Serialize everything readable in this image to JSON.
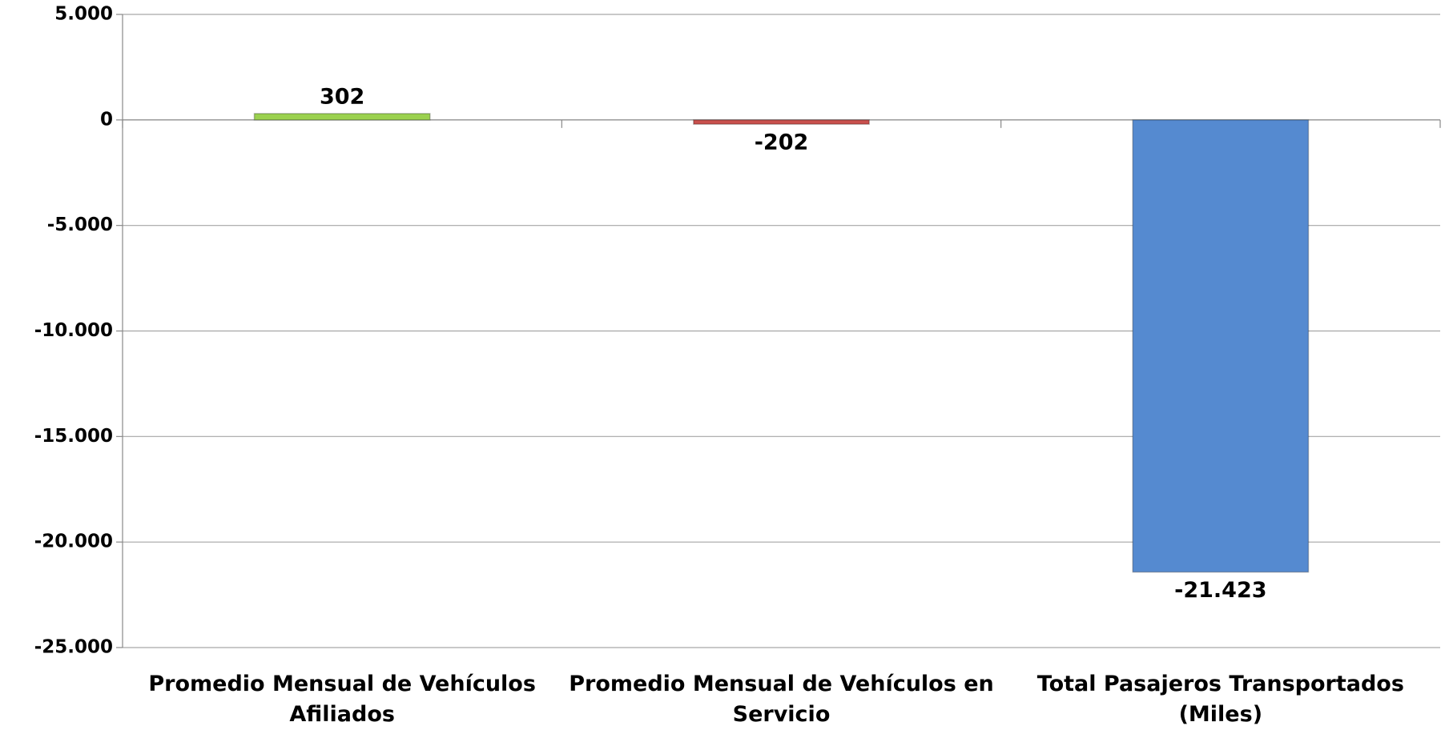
{
  "chart_data": {
    "type": "bar",
    "categories": [
      "Promedio Mensual de Vehículos Afiliados",
      "Promedio Mensual de Vehículos en Servicio",
      "Total Pasajeros Transportados (Miles)"
    ],
    "values": [
      302,
      -202,
      -21423
    ],
    "value_labels": [
      "302",
      "-202",
      "-21.423"
    ],
    "colors": [
      "#9bd14f",
      "#c9504d",
      "#558ad0"
    ],
    "ylim": [
      -25000,
      5000
    ],
    "yticks": [
      {
        "value": -25000,
        "label": "-25.000"
      },
      {
        "value": -20000,
        "label": "-20.000"
      },
      {
        "value": -15000,
        "label": "-15.000"
      },
      {
        "value": -10000,
        "label": "-10.000"
      },
      {
        "value": -5000,
        "label": "-5.000"
      },
      0,
      {
        "value": 5000,
        "label": "5.000"
      }
    ],
    "grid": true
  }
}
